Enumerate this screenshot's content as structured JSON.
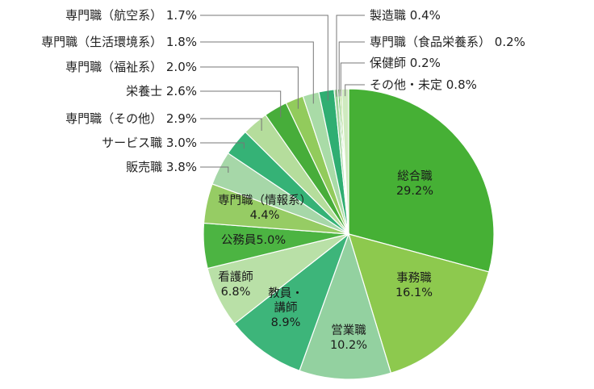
{
  "chart_data": {
    "type": "pie",
    "title": "",
    "slices": [
      {
        "label": "総合職",
        "text": "29.2%",
        "value": 29.2,
        "color": "#46b035"
      },
      {
        "label": "事務職",
        "text": "16.1%",
        "value": 16.1,
        "color": "#8dc94e"
      },
      {
        "label": "営業職",
        "text": "10.2%",
        "value": 10.2,
        "color": "#93d1a0"
      },
      {
        "label": "教員・講師",
        "text": "8.9%",
        "value": 8.9,
        "color": "#3db57a"
      },
      {
        "label": "看護師",
        "text": "6.8%",
        "value": 6.8,
        "color": "#b9e0a7"
      },
      {
        "label": "公務員",
        "text": "5.0%",
        "value": 5.0,
        "color": "#4cb442"
      },
      {
        "label": "専門職（情報系）",
        "text": "4.4%",
        "value": 4.4,
        "color": "#96cc64"
      },
      {
        "label": "販売職",
        "text": "3.8%",
        "value": 3.8,
        "color": "#a6d7a8"
      },
      {
        "label": "サービス職",
        "text": "3.0%",
        "value": 3.0,
        "color": "#35b276"
      },
      {
        "label": "専門職（その他）",
        "text": "2.9%",
        "value": 2.9,
        "color": "#b5dd9c"
      },
      {
        "label": "栄養士",
        "text": "2.6%",
        "value": 2.6,
        "color": "#47ad3a"
      },
      {
        "label": "専門職（福祉系）",
        "text": "2.0%",
        "value": 2.0,
        "color": "#92cb5c"
      },
      {
        "label": "専門職（生活環境系）",
        "text": "1.8%",
        "value": 1.8,
        "color": "#a9dba7"
      },
      {
        "label": "専門職（航空系）",
        "text": "1.7%",
        "value": 1.7,
        "color": "#2fae72"
      },
      {
        "label": "製造職",
        "text": "0.4%",
        "value": 0.4,
        "color": "#9fd49a"
      },
      {
        "label": "専門職（食品栄養系）",
        "text": "0.2%",
        "value": 0.2,
        "color": "#43aa39"
      },
      {
        "label": "保健師",
        "text": "0.2%",
        "value": 0.2,
        "color": "#8fc955"
      },
      {
        "label": "その他・未定",
        "text": "0.8%",
        "value": 0.8,
        "color": "#cfeabf"
      }
    ]
  }
}
